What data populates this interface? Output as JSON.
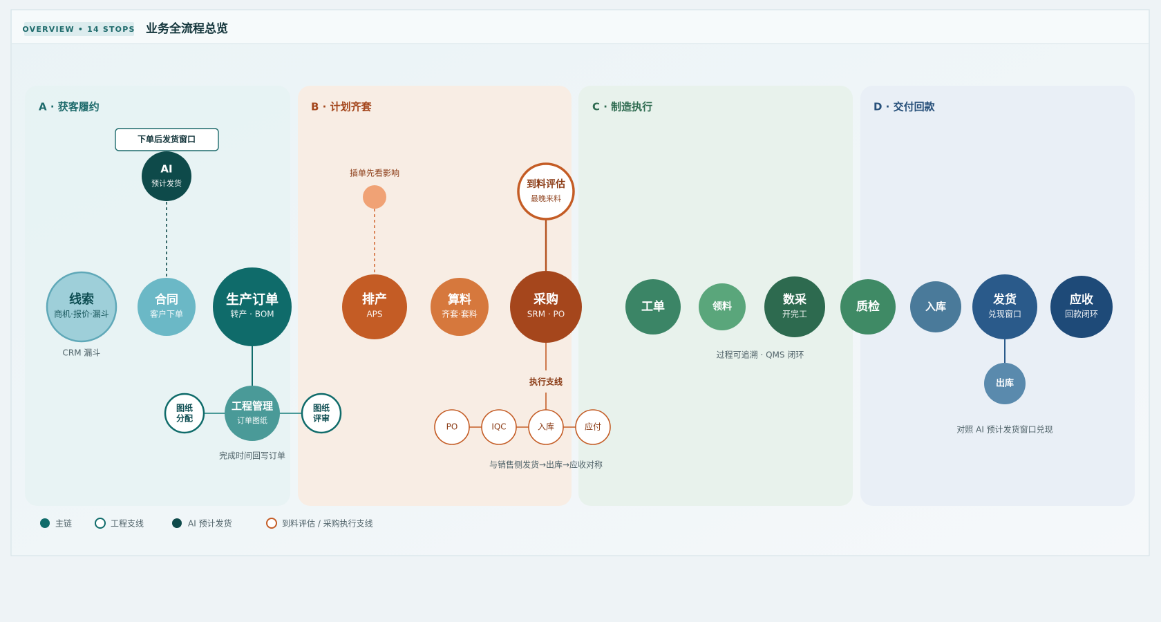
{
  "header": {
    "badge": "OVERVIEW • 14 STOPS",
    "title": "业务全流程总览"
  },
  "lanes": [
    "A · 获客履约",
    "B · 计划齐套",
    "C · 制造执行",
    "D · 交付回款"
  ],
  "nodes": [
    {
      "title": "线索",
      "sub": "商机·报价·漏斗"
    },
    {
      "title": "合同",
      "sub": "客户下单"
    },
    {
      "title": "生产订单",
      "sub": "转产 · BOM"
    },
    {
      "title": "AI",
      "sub": "预计发货"
    },
    {
      "title": "工程管理",
      "sub": "订单图纸"
    },
    {
      "title": "图纸",
      "sub": "分配"
    },
    {
      "title": "图纸",
      "sub": "评审"
    },
    {
      "title": "排产",
      "sub": "APS"
    },
    {
      "title": "算料",
      "sub": "齐套·套料"
    },
    {
      "title": "采购",
      "sub": "SRM · PO"
    },
    {
      "title": "到料评估",
      "sub": "最晚来料"
    },
    {
      "title": "工单"
    },
    {
      "title": "领料"
    },
    {
      "title": "数采",
      "sub": "开完工"
    },
    {
      "title": "质检"
    },
    {
      "title": "入库"
    },
    {
      "title": "发货",
      "sub": "兑现窗口"
    },
    {
      "title": "应收",
      "sub": "回款闭环"
    },
    {
      "title": "出库"
    },
    {
      "title": "PO"
    },
    {
      "title": "IQC"
    },
    {
      "title": "入库"
    },
    {
      "title": "应付"
    }
  ],
  "notes": [
    "下单后发货窗口",
    "插单先看影响",
    "执行支线",
    "CRM 漏斗",
    "完成时间回写订单",
    "与销售侧发货→出库→应收对称",
    "过程可追溯 · QMS 闭环",
    "对照 AI 预计发货窗口兑现"
  ],
  "legend": [
    "主链",
    "工程支线",
    "AI 预计发货",
    "到料评估 / 采购执行支线"
  ]
}
